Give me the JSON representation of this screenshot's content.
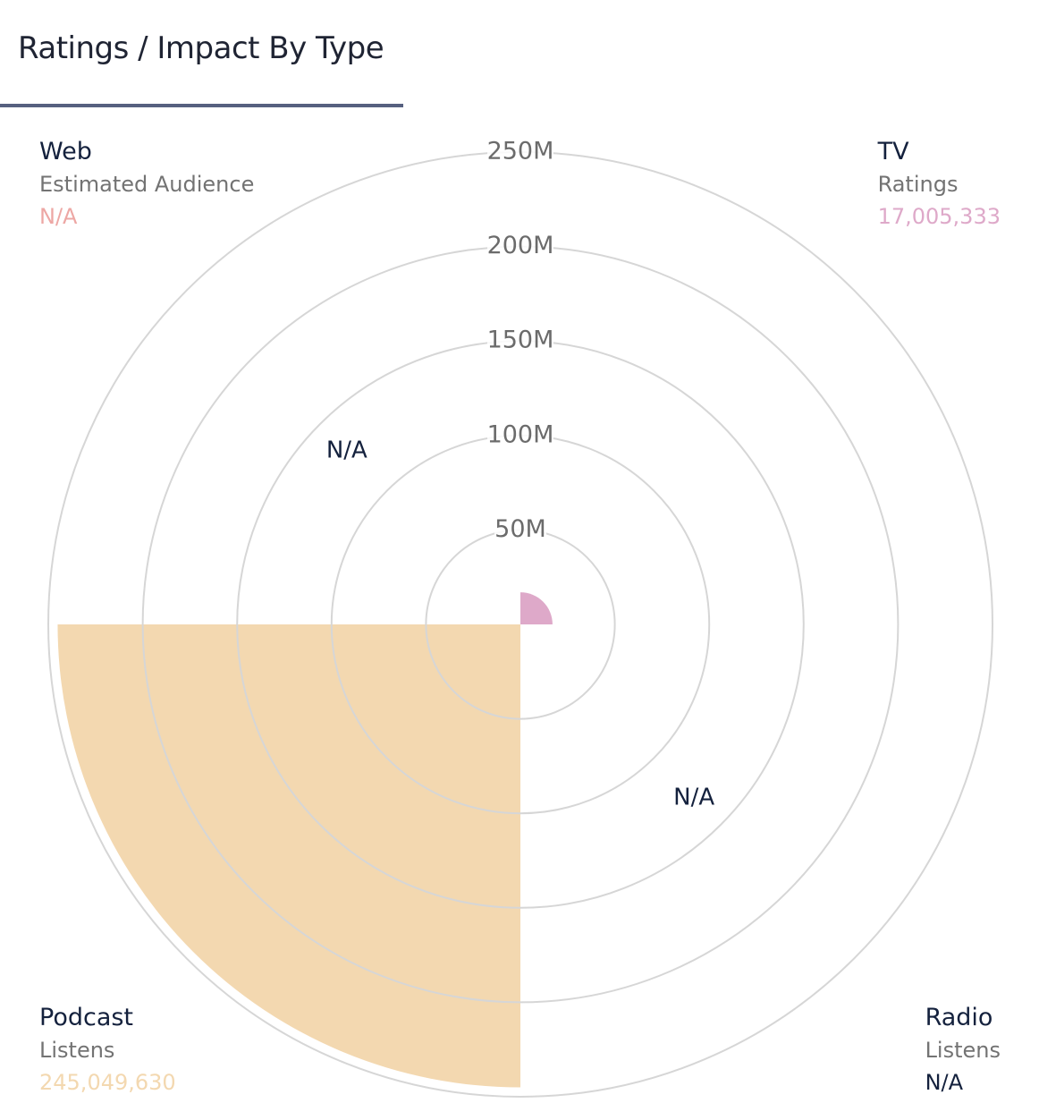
{
  "title": "Ratings / Impact By Type",
  "colors": {
    "tv": "#dea9c9",
    "podcast": "#f3d8b0",
    "web": "#eda7a4",
    "radio": "#14213d",
    "grid": "#d6d6d6",
    "tick": "#6b6b6b",
    "label_dark": "#14213d"
  },
  "legend": {
    "web": {
      "type": "Web",
      "metric": "Estimated Audience",
      "value": "N/A"
    },
    "tv": {
      "type": "TV",
      "metric": "Ratings",
      "value": "17,005,333"
    },
    "podcast": {
      "type": "Podcast",
      "metric": "Listens",
      "value": "245,049,630"
    },
    "radio": {
      "type": "Radio",
      "metric": "Listens",
      "value": "N/A"
    }
  },
  "chart_data": {
    "type": "polar-area",
    "title": "Ratings / Impact By Type",
    "categories": [
      "TV",
      "Radio",
      "Podcast",
      "Web"
    ],
    "values": [
      17005333,
      null,
      245049630,
      null
    ],
    "value_labels": [
      "17,005,333",
      "N/A",
      "245,049,630",
      "N/A"
    ],
    "missing_label": "N/A",
    "rmax": 250000000,
    "ticks": [
      50000000,
      100000000,
      150000000,
      200000000,
      250000000
    ],
    "tick_labels": [
      "50M",
      "100M",
      "150M",
      "200M",
      "250M"
    ],
    "grid": true
  }
}
